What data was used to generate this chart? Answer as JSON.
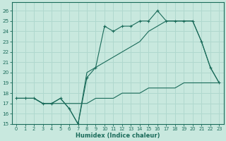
{
  "xlabel": "Humidex (Indice chaleur)",
  "xlim": [
    -0.5,
    23.5
  ],
  "ylim": [
    15,
    26.8
  ],
  "yticks": [
    15,
    16,
    17,
    18,
    19,
    20,
    21,
    22,
    23,
    24,
    25,
    26
  ],
  "xticks": [
    0,
    1,
    2,
    3,
    4,
    5,
    6,
    7,
    8,
    9,
    10,
    11,
    12,
    13,
    14,
    15,
    16,
    17,
    18,
    19,
    20,
    21,
    22,
    23
  ],
  "bg_color": "#c8e8de",
  "line_color": "#1a6b5a",
  "grid_color": "#b0d8ce",
  "line1_x": [
    0,
    1,
    2,
    3,
    4,
    5,
    6,
    7,
    8,
    9,
    10,
    11,
    12,
    13,
    14,
    15,
    16,
    17,
    18,
    19,
    20,
    21,
    22,
    23
  ],
  "line1_y": [
    17.5,
    17.5,
    17.5,
    17.0,
    17.0,
    17.5,
    16.5,
    15.0,
    19.5,
    20.5,
    24.5,
    24.0,
    24.5,
    24.5,
    25.0,
    25.0,
    26.0,
    25.0,
    25.0,
    25.0,
    25.0,
    23.0,
    20.5,
    19.0
  ],
  "line2_x": [
    0,
    1,
    2,
    3,
    4,
    5,
    6,
    7,
    8,
    9,
    10,
    11,
    12,
    13,
    14,
    15,
    16,
    17,
    18,
    19,
    20,
    21,
    22,
    23
  ],
  "line2_y": [
    17.5,
    17.5,
    17.5,
    17.0,
    17.0,
    17.5,
    16.5,
    15.0,
    20.0,
    20.5,
    21.0,
    21.5,
    22.0,
    22.5,
    23.0,
    24.0,
    24.5,
    25.0,
    25.0,
    25.0,
    25.0,
    23.0,
    20.5,
    19.0
  ],
  "line3_x": [
    0,
    1,
    2,
    3,
    4,
    5,
    6,
    7,
    8,
    9,
    10,
    11,
    12,
    13,
    14,
    15,
    16,
    17,
    18,
    19,
    20,
    21,
    22,
    23
  ],
  "line3_y": [
    17.5,
    17.5,
    17.5,
    17.0,
    17.0,
    17.0,
    17.0,
    17.0,
    17.0,
    17.5,
    17.5,
    17.5,
    18.0,
    18.0,
    18.0,
    18.5,
    18.5,
    18.5,
    18.5,
    19.0,
    19.0,
    19.0,
    19.0,
    19.0
  ]
}
